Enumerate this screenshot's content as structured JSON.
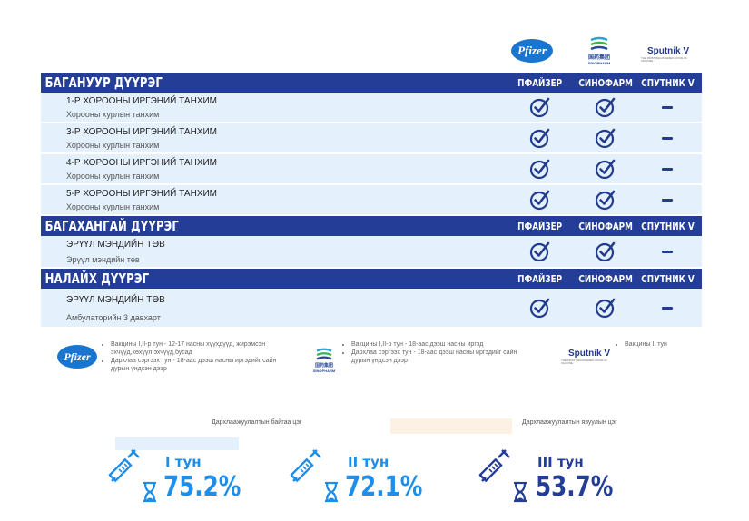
{
  "vaccines": {
    "pfizer": "Pfizer",
    "sinopharm_cn": "国药集团",
    "sinopharm": "SINOPHARM",
    "sputnik": "Sputnik V",
    "sputnik_sub": "THE FIRST REGISTERED COVID-19 VACCINE"
  },
  "columns": [
    "ПФАЙЗЕР",
    "СИНОФАРМ",
    "СПУТНИК V"
  ],
  "districts": [
    {
      "name": "БАГАНУУР ДҮҮРЭГ",
      "sites": [
        {
          "name": "1-Р ХОРООНЫ ИРГЭНИЙ ТАНХИМ",
          "place": "Хорооны хурлын танхим",
          "pfizer": true,
          "sinopharm": true,
          "sputnik": false
        },
        {
          "name": "3-Р ХОРООНЫ ИРГЭНИЙ ТАНХИМ",
          "place": "Хорооны хурлын  танхим",
          "pfizer": true,
          "sinopharm": true,
          "sputnik": false
        },
        {
          "name": "4-Р ХОРООНЫ ИРГЭНИЙ ТАНХИМ",
          "place": "Хорооны хурлын танхим",
          "pfizer": true,
          "sinopharm": true,
          "sputnik": false
        },
        {
          "name": "5-Р ХОРООНЫ ИРГЭНИЙ ТАНХИМ",
          "place": "Хорооны хурлын танхим",
          "pfizer": true,
          "sinopharm": true,
          "sputnik": false
        }
      ]
    },
    {
      "name": "БАГАХАНГАЙ ДҮҮРЭГ",
      "sites": [
        {
          "name": "ЭРҮҮЛ МЭНДИЙН ТӨВ",
          "place": "Эрүүл мэндийн төв",
          "pfizer": true,
          "sinopharm": true,
          "sputnik": false
        }
      ]
    },
    {
      "name": "НАЛАЙХ ДҮҮРЭГ",
      "sites": [
        {
          "name": "ЭРҮҮЛ МЭНДИЙН ТӨВ",
          "place": "Амбулаторийн 3 давхарт",
          "pfizer": true,
          "sinopharm": true,
          "sputnik": false
        }
      ]
    }
  ],
  "legend": {
    "pfizer": [
      "Вакцины I,II-р тун - 12-17 насны хүүхдүүд, жирэмсэн эхчүүд,хөхүүл эхчүүд,бусад",
      "Дархлаа сэргээх тун - 18-аас дээш насны иргэдийг сайн дурын үндсэн дээр"
    ],
    "sinopharm": [
      "Вакцины I,II-р тун - 18-аас дээш насны иргэд",
      "Дархлаа сэргээх тун - 18-аас дээш насны иргэдийг сайн дурын үндсэн дээр"
    ],
    "sputnik": [
      "Вакцины II тун"
    ]
  },
  "status_labels": {
    "current": "Дархлаажуулалтын байгаа цэг",
    "mobile": "Дархлаажуулалтын явуулын цэг"
  },
  "stats": [
    {
      "dose": "I тун",
      "percent": "75.2%",
      "value": 75.2
    },
    {
      "dose": "II тун",
      "percent": "72.1%",
      "value": 72.1
    },
    {
      "dose": "III тун",
      "percent": "53.7%",
      "value": 53.7
    }
  ],
  "colors": {
    "navy": "#243d96",
    "light_blue": "#e4f1fc",
    "accent_blue": "#1f8ee8",
    "peach": "#fdf1e4"
  }
}
